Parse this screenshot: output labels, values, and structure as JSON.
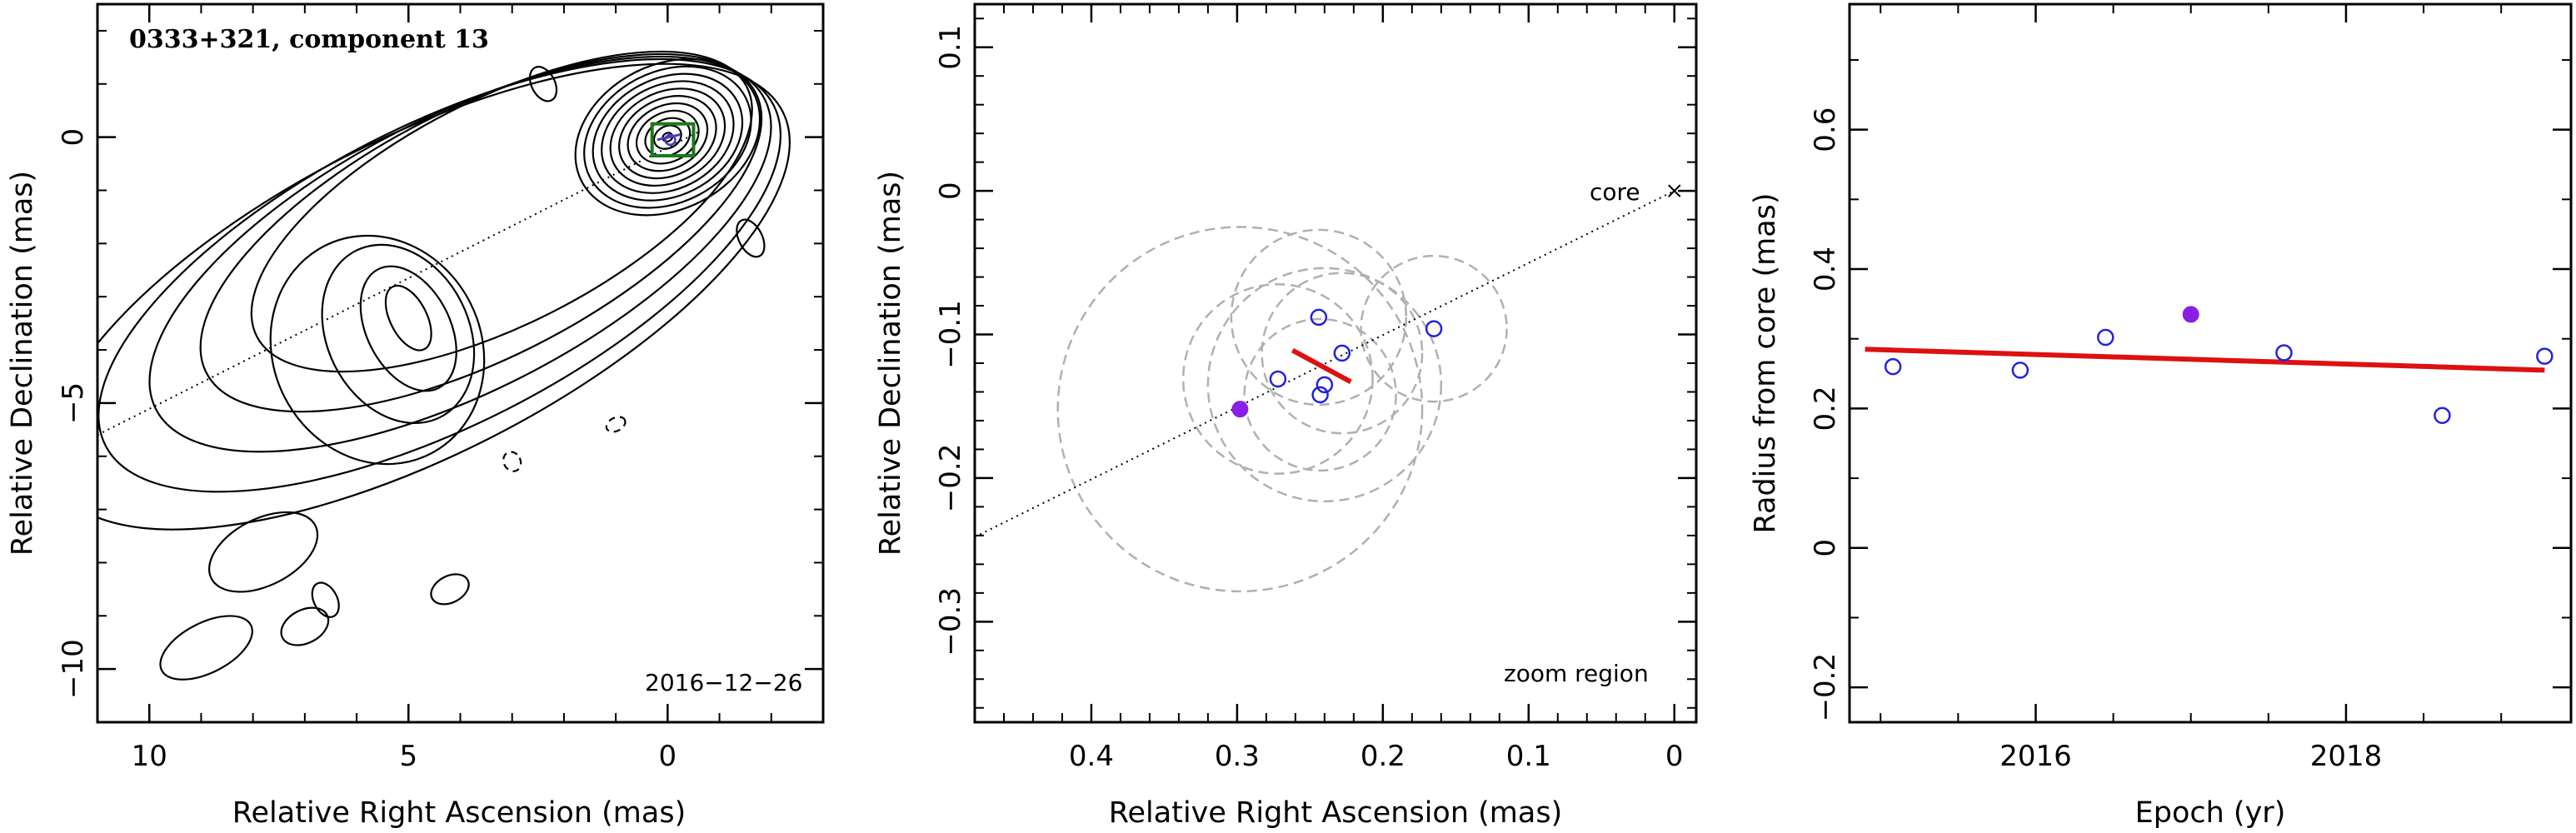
{
  "chart_data": [
    {
      "type": "contour",
      "title": "0333+321, component 13",
      "xlabel": "Relative Right Ascension (mas)",
      "ylabel": "Relative Declination (mas)",
      "xlim": [
        11,
        -3
      ],
      "ylim": [
        -11,
        2.5
      ],
      "xticks": [
        10,
        5,
        0
      ],
      "yticks": [
        0,
        -5,
        -10
      ],
      "tick_labels_x": [
        "10",
        "5",
        "0"
      ],
      "tick_labels_y": [
        "0",
        "−5",
        "−10"
      ],
      "annotation": "2016−12−26",
      "ridge_line": {
        "x": [
          11,
          -0.6
        ],
        "y": [
          -5.6,
          0.1
        ]
      },
      "component_box": {
        "x": [
          -0.5,
          0.3
        ],
        "y": [
          -0.35,
          0.25
        ]
      },
      "colors": {
        "contour": "#000000",
        "box": "#1a7a1a",
        "marker": "#4b3cb8"
      }
    },
    {
      "type": "scatter",
      "xlabel": "Relative Right Ascension (mas)",
      "ylabel": "Relative Declination (mas)",
      "xlim": [
        0.48,
        -0.015
      ],
      "ylim": [
        -0.37,
        0.13
      ],
      "xticks": [
        0.4,
        0.3,
        0.2,
        0.1,
        0
      ],
      "yticks": [
        0.1,
        0,
        -0.1,
        -0.2,
        -0.3
      ],
      "tick_labels_x": [
        "0.4",
        "0.3",
        "0.2",
        "0.1",
        "0"
      ],
      "tick_labels_y": [
        "0.1",
        "0",
        "−0.1",
        "−0.2",
        "−0.3"
      ],
      "core_label": "core",
      "region_label": "zoom region",
      "points": [
        {
          "x": 0.244,
          "y": -0.088
        },
        {
          "x": 0.228,
          "y": -0.113
        },
        {
          "x": 0.165,
          "y": -0.096
        },
        {
          "x": 0.272,
          "y": -0.131
        },
        {
          "x": 0.24,
          "y": -0.135
        },
        {
          "x": 0.243,
          "y": -0.142
        }
      ],
      "highlight": {
        "x": 0.298,
        "y": -0.152
      },
      "circles": [
        {
          "x": 0.298,
          "y": -0.152,
          "r": 0.125
        },
        {
          "x": 0.24,
          "y": -0.135,
          "r": 0.08
        },
        {
          "x": 0.244,
          "y": -0.088,
          "r": 0.06
        },
        {
          "x": 0.228,
          "y": -0.113,
          "r": 0.055
        },
        {
          "x": 0.165,
          "y": -0.096,
          "r": 0.05
        },
        {
          "x": 0.272,
          "y": -0.131,
          "r": 0.065
        },
        {
          "x": 0.243,
          "y": -0.142,
          "r": 0.052
        }
      ],
      "ridge_line": {
        "x": [
          0.48,
          0
        ],
        "y": [
          -0.241,
          0
        ]
      },
      "motion_vector": {
        "x": [
          0.262,
          0.222
        ],
        "y": [
          -0.111,
          -0.133
        ]
      },
      "colors": {
        "points": "#2222dd",
        "highlight": "#8a1fe6",
        "vector": "#dd1111",
        "circles": "#b0b0b0"
      }
    },
    {
      "type": "scatter",
      "xlabel": "Epoch (yr)",
      "ylabel": "Radius from core (mas)",
      "xlim": [
        2014.8,
        2019.45
      ],
      "ylim": [
        -0.25,
        0.78
      ],
      "xticks": [
        2016,
        2018
      ],
      "yticks": [
        0.6,
        0.4,
        0.2,
        0,
        -0.2
      ],
      "tick_labels_x": [
        "2016",
        "2018"
      ],
      "tick_labels_y": [
        "0.6",
        "0.4",
        "0.2",
        "0",
        "−0.2"
      ],
      "points": [
        {
          "x": 2015.08,
          "y": 0.26
        },
        {
          "x": 2015.9,
          "y": 0.255
        },
        {
          "x": 2016.45,
          "y": 0.302
        },
        {
          "x": 2017.6,
          "y": 0.28
        },
        {
          "x": 2018.62,
          "y": 0.19
        },
        {
          "x": 2019.28,
          "y": 0.275
        }
      ],
      "highlight": {
        "x": 2017.0,
        "y": 0.335
      },
      "fit_line": {
        "x": [
          2014.9,
          2019.28
        ],
        "y": [
          0.285,
          0.255
        ]
      },
      "colors": {
        "points": "#2222dd",
        "highlight": "#8a1fe6",
        "fit": "#dd1111"
      }
    }
  ]
}
